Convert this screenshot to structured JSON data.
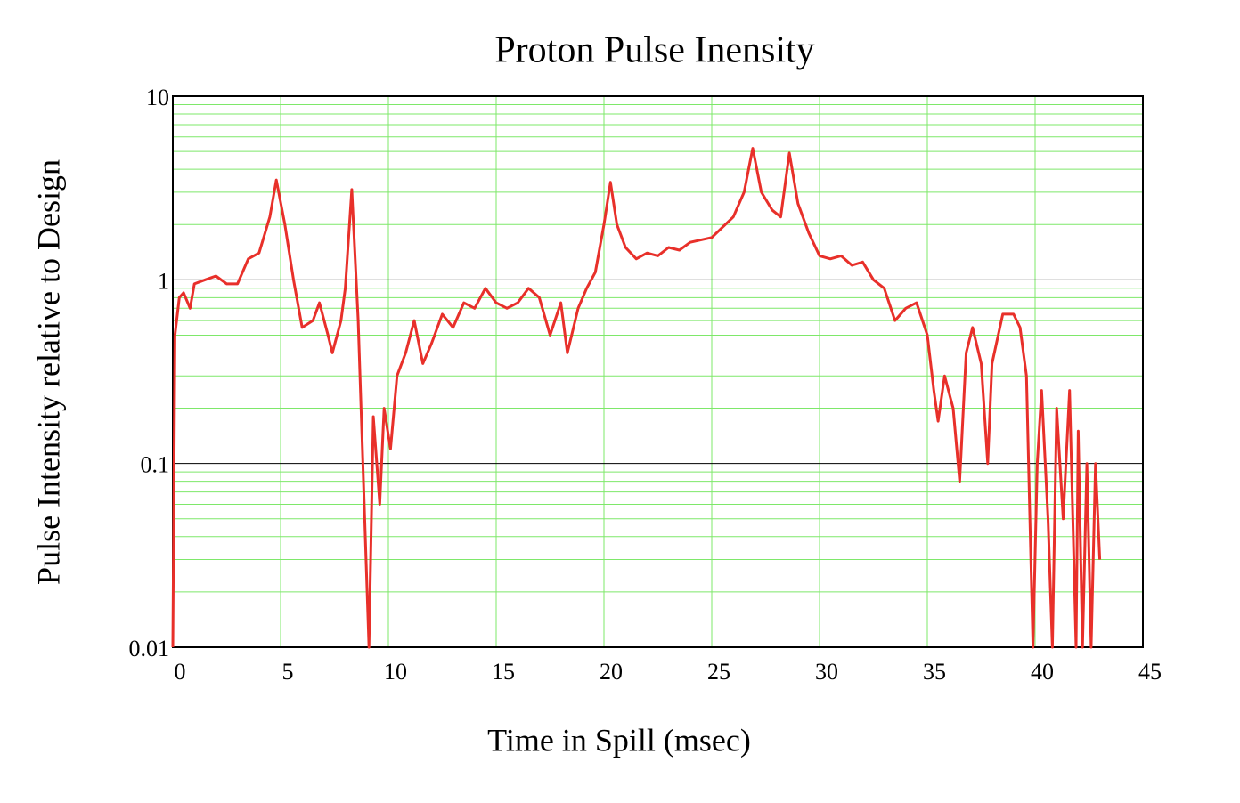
{
  "chart_data": {
    "type": "line",
    "title": "Proton Pulse Inensity",
    "x_label": "Time in Spill (msec)",
    "y_label": "Pulse Intensity relative to Design",
    "x": [
      0,
      0.1,
      0.3,
      0.5,
      0.8,
      1,
      1.5,
      2,
      2.5,
      3,
      3.5,
      4,
      4.5,
      4.8,
      5.2,
      5.6,
      6,
      6.5,
      6.8,
      7.2,
      7.4,
      7.8,
      8,
      8.3,
      8.6,
      8.9,
      9.1,
      9.3,
      9.6,
      9.8,
      10.1,
      10.4,
      10.8,
      11.2,
      11.6,
      12,
      12.5,
      13,
      13.5,
      14,
      14.5,
      15,
      15.5,
      16,
      16.5,
      17,
      17.5,
      18,
      18.3,
      18.8,
      19.2,
      19.6,
      20,
      20.3,
      20.6,
      21,
      21.5,
      22,
      22.5,
      23,
      23.5,
      24,
      25,
      26,
      26.5,
      26.9,
      27.3,
      27.8,
      28.2,
      28.6,
      29,
      29.5,
      30,
      30.5,
      31,
      31.5,
      32,
      32.5,
      33,
      33.5,
      34,
      34.5,
      35,
      35.3,
      35.5,
      35.8,
      36.2,
      36.5,
      36.8,
      37.1,
      37.5,
      37.8,
      38,
      38.5,
      39,
      39.3,
      39.6,
      39.9,
      40.1,
      40.3,
      40.6,
      40.8,
      41,
      41.3,
      41.6,
      41.9,
      42,
      42.2,
      42.4,
      42.6,
      42.8,
      43
    ],
    "values": [
      0.01,
      0.5,
      0.8,
      0.85,
      0.7,
      0.95,
      1.0,
      1.05,
      0.95,
      0.95,
      1.3,
      1.4,
      2.2,
      3.5,
      2.0,
      1.0,
      0.55,
      0.6,
      0.75,
      0.5,
      0.4,
      0.6,
      0.9,
      3.1,
      0.6,
      0.05,
      0.01,
      0.18,
      0.06,
      0.2,
      0.12,
      0.3,
      0.4,
      0.6,
      0.35,
      0.45,
      0.65,
      0.55,
      0.75,
      0.7,
      0.9,
      0.75,
      0.7,
      0.75,
      0.9,
      0.8,
      0.5,
      0.75,
      0.4,
      0.7,
      0.9,
      1.1,
      2.0,
      3.4,
      2.0,
      1.5,
      1.3,
      1.4,
      1.35,
      1.5,
      1.45,
      1.6,
      1.7,
      2.2,
      3.0,
      5.2,
      3.0,
      2.4,
      2.2,
      4.9,
      2.6,
      1.8,
      1.35,
      1.3,
      1.35,
      1.2,
      1.25,
      1.0,
      0.9,
      0.6,
      0.7,
      0.75,
      0.5,
      0.25,
      0.17,
      0.3,
      0.2,
      0.08,
      0.4,
      0.55,
      0.35,
      0.1,
      0.35,
      0.65,
      0.65,
      0.55,
      0.3,
      0.01,
      0.1,
      0.25,
      0.05,
      0.01,
      0.2,
      0.05,
      0.25,
      0.01,
      0.15,
      0.01,
      0.1,
      0.01,
      0.1,
      0.03
    ],
    "color": "#e8302a",
    "xlim": [
      0,
      45
    ],
    "xticks": [
      0,
      5,
      10,
      15,
      20,
      25,
      30,
      35,
      40,
      45
    ],
    "ylim": [
      0.01,
      10
    ],
    "yticks": [
      0.01,
      0.1,
      1,
      10
    ],
    "y_log": true,
    "grid": true,
    "grid_color": "#7ee86a",
    "major_grid_color": "#000000"
  }
}
